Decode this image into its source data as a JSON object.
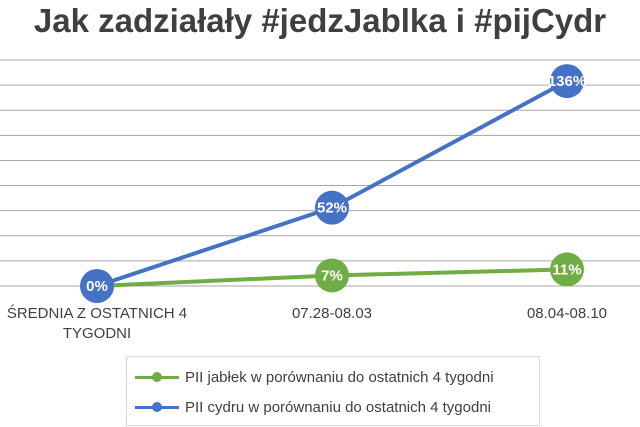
{
  "chart_data": {
    "type": "line",
    "title": "Jak zadziałały #jedzJablka i #pijCydr",
    "categories": [
      "ŚREDNIA Z OSTATNICH 4 TYGODNI",
      "07.28-08.03",
      "08.04-08.10"
    ],
    "category_lines": [
      [
        "ŚREDNIA Z OSTATNICH 4",
        "TYGODNI"
      ],
      [
        "07.28-08.03"
      ],
      [
        "08.04-08.10"
      ]
    ],
    "series": [
      {
        "name": "PII jabłek w porównaniu do ostatnich 4 tygodni",
        "color": "#70ad47",
        "values": [
          0,
          7,
          11
        ],
        "labels": [
          "",
          "7%",
          "11%"
        ]
      },
      {
        "name": "PII cydru w porównaniu do ostatnich 4 tygodni",
        "color": "#4472c4",
        "values": [
          0,
          52,
          136
        ],
        "labels": [
          "0%",
          "52%",
          "136%"
        ]
      }
    ],
    "ylim": [
      0,
      150
    ],
    "grid": true,
    "legend": "bottom"
  }
}
